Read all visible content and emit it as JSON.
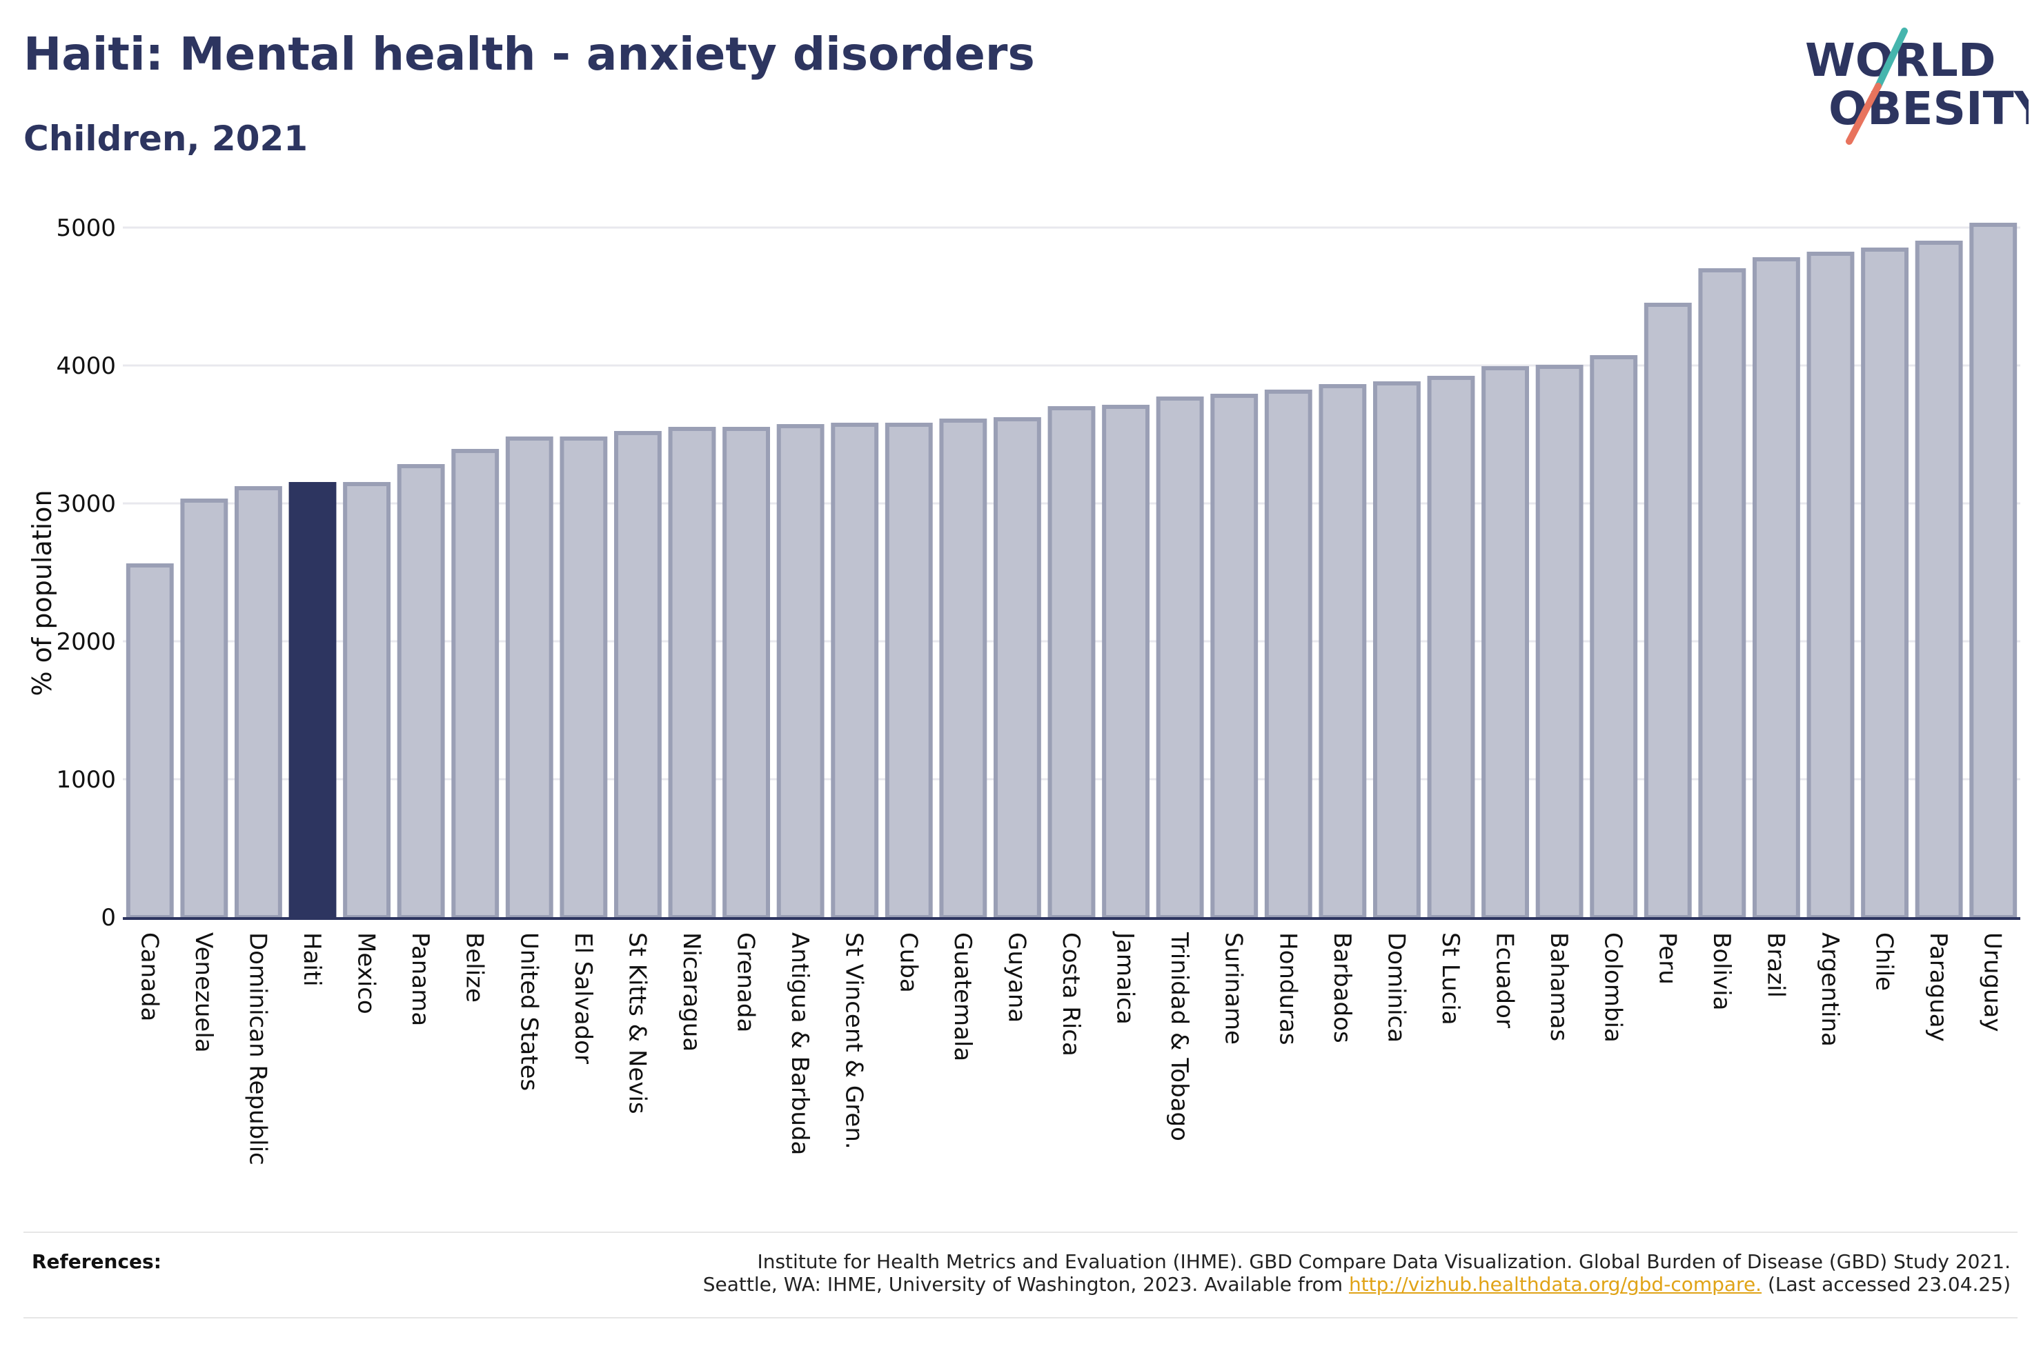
{
  "header": {
    "title": "Haiti: Mental health - anxiety disorders",
    "subtitle": "Children, 2021"
  },
  "logo": {
    "line1": "WORLD",
    "line2": "OBESITY"
  },
  "colors": {
    "highlight": "#2d3560",
    "bar": "#bfc2d0",
    "bar_border": "#9a9fb5",
    "axis": "#2d3560",
    "grid": "#e8e8ee",
    "logo_teal": "#45b5ad",
    "logo_coral": "#e8735d",
    "link": "#e0a317"
  },
  "chart_data": {
    "type": "bar",
    "ylabel": "% of population",
    "ylim": [
      0,
      5000
    ],
    "yticks": [
      0,
      1000,
      2000,
      3000,
      4000,
      5000
    ],
    "grid": true,
    "highlight": "Haiti",
    "categories": [
      "Canada",
      "Venezuela",
      "Dominican Republic",
      "Haiti",
      "Mexico",
      "Panama",
      "Belize",
      "United States",
      "El Salvador",
      "St Kitts & Nevis",
      "Nicaragua",
      "Grenada",
      "Antigua & Barbuda",
      "St Vincent & Gren.",
      "Cuba",
      "Guatemala",
      "Guyana",
      "Costa Rica",
      "Jamaica",
      "Trinidad & Tobago",
      "Suriname",
      "Honduras",
      "Barbados",
      "Dominica",
      "St Lucia",
      "Ecuador",
      "Bahamas",
      "Colombia",
      "Peru",
      "Bolivia",
      "Brazil",
      "Argentina",
      "Chile",
      "Paraguay",
      "Uruguay"
    ],
    "values": [
      2550,
      3020,
      3110,
      3140,
      3140,
      3270,
      3380,
      3470,
      3470,
      3510,
      3540,
      3540,
      3560,
      3570,
      3570,
      3600,
      3610,
      3690,
      3700,
      3760,
      3780,
      3810,
      3850,
      3870,
      3910,
      3980,
      3990,
      4060,
      4440,
      4690,
      4770,
      4810,
      4840,
      4890,
      5020
    ]
  },
  "references": {
    "label": "References:",
    "line1": "Institute for Health Metrics and Evaluation (IHME). GBD Compare Data Visualization. Global Burden of Disease (GBD) Study 2021.",
    "line2_prefix": "Seattle, WA: IHME, University of Washington, 2023. Available from ",
    "link": "http://vizhub.healthdata.org/gbd-compare.",
    "line2_suffix": " (Last accessed 23.04.25)"
  }
}
